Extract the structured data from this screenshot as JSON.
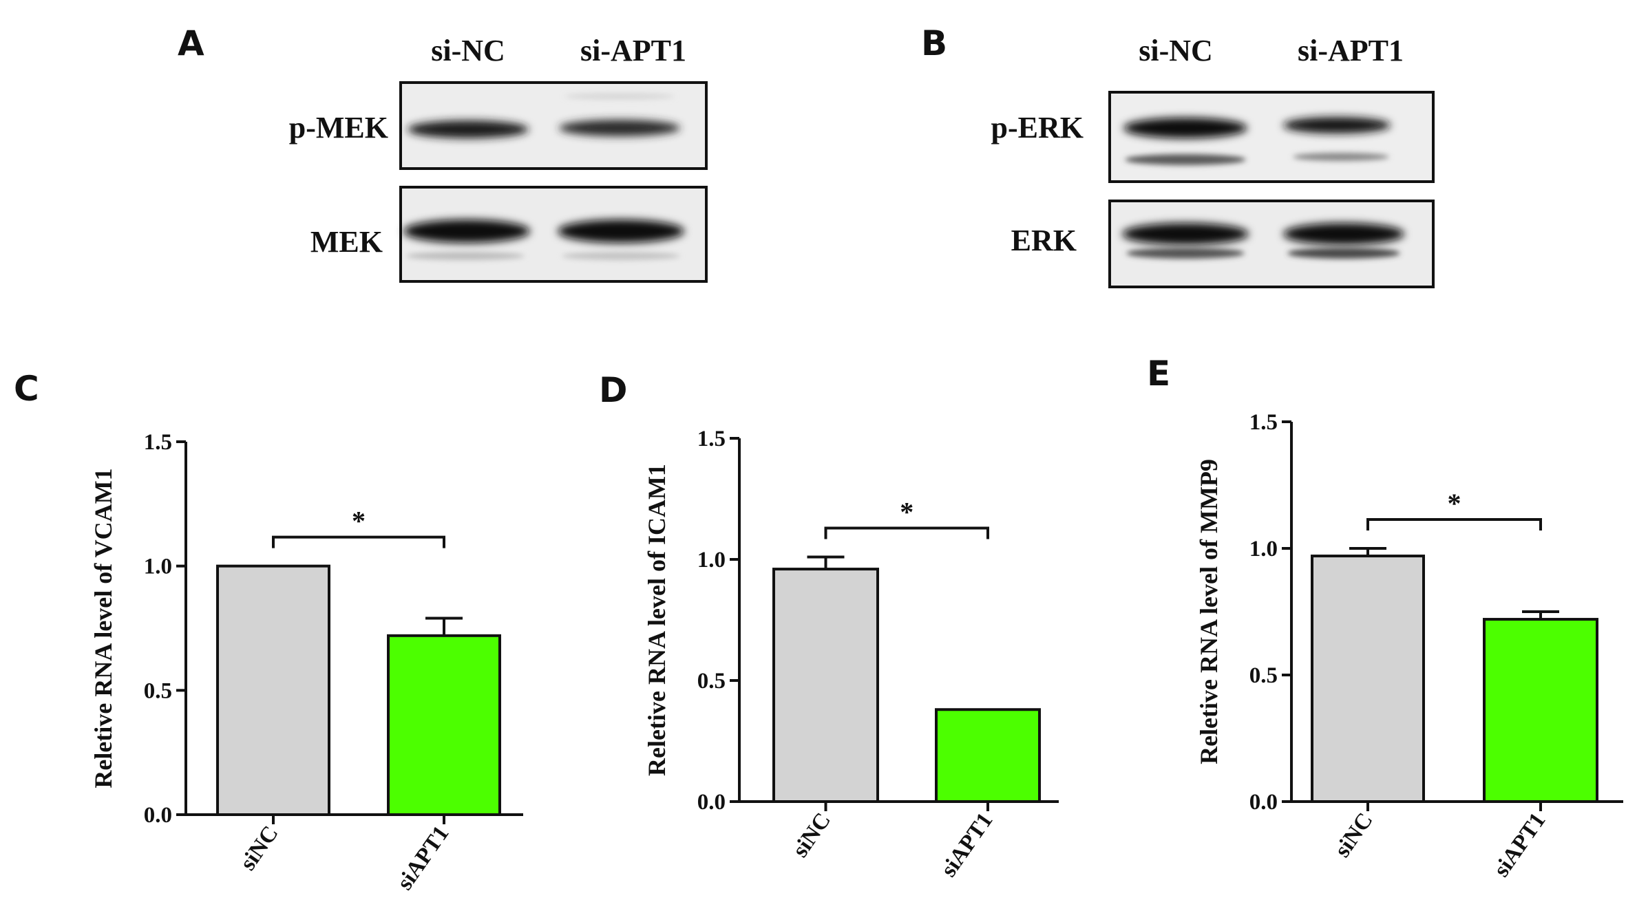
{
  "panels": {
    "A": {
      "letter": "A",
      "lanes": [
        "si-NC",
        "si-APT1"
      ],
      "blots": [
        "p-MEK",
        "MEK"
      ]
    },
    "B": {
      "letter": "B",
      "lanes": [
        "si-NC",
        "si-APT1"
      ],
      "blots": [
        "p-ERK",
        "ERK"
      ]
    }
  },
  "colors": {
    "control_bar": "#d3d3d3",
    "knockdown_bar": "#4cff00",
    "axis": "#111111"
  },
  "chart_data": [
    {
      "panel": "C",
      "type": "bar",
      "ylabel": "Reletive RNA level of VCAM1",
      "categories": [
        "siNC",
        "siAPT1"
      ],
      "values": [
        1.0,
        0.72
      ],
      "errors": [
        0,
        0.07
      ],
      "ylim": [
        0,
        1.5
      ],
      "yticks": [
        "0.0",
        "0.5",
        "1.0",
        "1.5"
      ],
      "significance": "*",
      "grid": false
    },
    {
      "panel": "D",
      "type": "bar",
      "ylabel": "Reletive RNA level of ICAM1",
      "categories": [
        "siNC",
        "siAPT1"
      ],
      "values": [
        0.96,
        0.38
      ],
      "errors": [
        0.05,
        0
      ],
      "ylim": [
        0,
        1.5
      ],
      "yticks": [
        "0.0",
        "0.5",
        "1.0",
        "1.5"
      ],
      "significance": "*",
      "grid": false
    },
    {
      "panel": "E",
      "type": "bar",
      "ylabel": "Reletive RNA level of MMP9",
      "categories": [
        "siNC",
        "siAPT1"
      ],
      "values": [
        0.97,
        0.72
      ],
      "errors": [
        0.03,
        0.03
      ],
      "ylim": [
        0,
        1.5
      ],
      "yticks": [
        "0.0",
        "0.5",
        "1.0",
        "1.5"
      ],
      "significance": "*",
      "grid": false
    }
  ]
}
